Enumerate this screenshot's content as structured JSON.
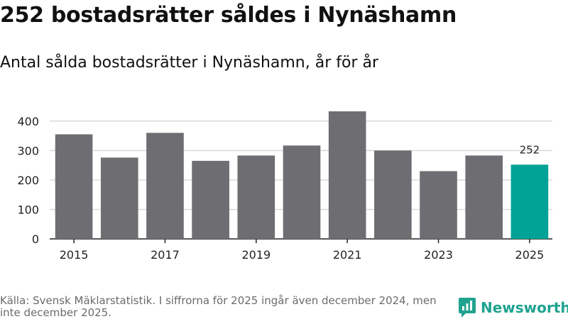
{
  "title": "252 bostadsrätter såldes i Nynäshamn",
  "subtitle": "Antal sålda bostadsrätter i Nynäshamn, år för år",
  "footer": "Källa: Svensk Mäklarstatistik. I siffrorna för 2025 ingår även december 2024, men inte december 2025.",
  "brand": "Newsworthy",
  "colors": {
    "bar": "#6e6d72",
    "highlight": "#00a396",
    "grid": "#d9d9d9",
    "brand": "#1fa38f"
  },
  "chart_data": {
    "type": "bar",
    "title": "Antal sålda bostadsrätter i Nynäshamn, år för år",
    "categories": [
      "2015",
      "2016",
      "2017",
      "2018",
      "2019",
      "2020",
      "2021",
      "2022",
      "2023",
      "2024",
      "2025"
    ],
    "values": [
      355,
      276,
      360,
      265,
      283,
      317,
      433,
      300,
      230,
      283,
      252
    ],
    "highlight_index": 10,
    "highlight_label": "252",
    "ylim": [
      0,
      450
    ],
    "yticks": [
      "0",
      "100",
      "200",
      "300",
      "400"
    ],
    "xtick_labels": [
      "2015",
      "2017",
      "2019",
      "2021",
      "2023",
      "2025"
    ],
    "xlabel": "",
    "ylabel": "",
    "grid": true
  }
}
